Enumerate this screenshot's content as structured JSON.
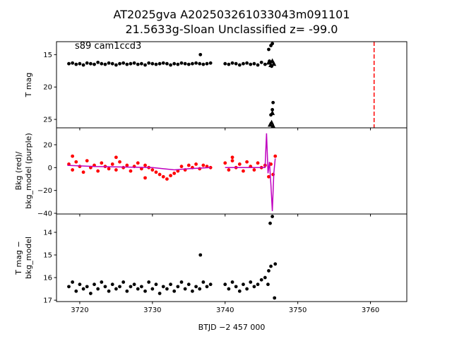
{
  "chart_data": [
    {
      "type": "scatter",
      "title": [
        "AT2025gva  A202503261033043m091101",
        "21.5633g-Sloan Unclassified z= -99.0"
      ],
      "annotation": "s89 cam1ccd3",
      "ylabel": [
        "T mag"
      ],
      "xlim": [
        3716.8,
        3765.0
      ],
      "ylim": [
        26.3,
        13.0
      ],
      "yticks": [
        15,
        20,
        25
      ],
      "xticks": [
        3720,
        3730,
        3740,
        3750,
        3760
      ],
      "vlines": [
        {
          "x": 3760.5,
          "color": "#ff0000",
          "style": "dashed"
        }
      ],
      "series": [
        {
          "marker": "circle",
          "color": "#000000",
          "x": [
            3718.5,
            3719,
            3719.5,
            3720,
            3720.5,
            3721,
            3721.5,
            3722,
            3722.5,
            3723,
            3723.5,
            3724,
            3724.5,
            3725,
            3725.5,
            3726,
            3726.5,
            3727,
            3727.5,
            3728,
            3728.5,
            3729,
            3729.5,
            3730,
            3730.5,
            3731,
            3731.5,
            3732,
            3732.5,
            3733,
            3733.5,
            3734,
            3734.5,
            3735,
            3735.5,
            3736,
            3736.5,
            3737,
            3737.5,
            3738,
            3740,
            3740.5,
            3741,
            3741.5,
            3742,
            3742.5,
            3743,
            3743.5,
            3744,
            3744.5,
            3745,
            3745.5,
            3736.6,
            3746.0,
            3746.3,
            3746.5,
            3746.1,
            3746.4,
            3746.6,
            3746.5,
            3746.3
          ],
          "values": [
            16.4,
            16.3,
            16.5,
            16.4,
            16.6,
            16.3,
            16.4,
            16.5,
            16.2,
            16.4,
            16.5,
            16.3,
            16.4,
            16.6,
            16.4,
            16.3,
            16.5,
            16.4,
            16.3,
            16.5,
            16.4,
            16.6,
            16.3,
            16.4,
            16.5,
            16.4,
            16.3,
            16.4,
            16.6,
            16.4,
            16.5,
            16.3,
            16.4,
            16.5,
            16.4,
            16.3,
            16.4,
            16.5,
            16.4,
            16.3,
            16.4,
            16.5,
            16.3,
            16.4,
            16.6,
            16.4,
            16.3,
            16.5,
            16.4,
            16.6,
            16.2,
            16.5,
            15.0,
            14.2,
            13.6,
            13.3,
            16.0,
            16.8,
            22.4,
            23.5,
            24.3
          ]
        },
        {
          "marker": "triangle",
          "color": "#000000",
          "x": [
            3746.0,
            3746.3,
            3746.5,
            3746.7,
            3746.4,
            3746.5,
            3746.6,
            3746.2
          ],
          "values": [
            16.2,
            16.6,
            16.0,
            16.4,
            25.5,
            24.0,
            26.0,
            25.8
          ]
        }
      ]
    },
    {
      "type": "scatter",
      "ylabel": [
        "Bkg (red)/",
        "bkg_model (purple)"
      ],
      "xlim": [
        3716.8,
        3765.0
      ],
      "ylim": [
        -40.6,
        34.8
      ],
      "yticks": [
        20,
        0,
        {
          "value": -20,
          "label": "−20"
        },
        {
          "value": -40,
          "label": "−40"
        }
      ],
      "xticks": [
        3720,
        3730,
        3740,
        3750,
        3760
      ],
      "series": [
        {
          "marker": "circle",
          "color": "#ff0000",
          "x": [
            3718.5,
            3719,
            3719.5,
            3720,
            3720.5,
            3721,
            3721.5,
            3722,
            3722.5,
            3723,
            3723.5,
            3724,
            3724.5,
            3725,
            3725.5,
            3726,
            3726.5,
            3727,
            3727.5,
            3728,
            3728.5,
            3729,
            3729.5,
            3730,
            3730.5,
            3731,
            3731.5,
            3732,
            3732.5,
            3733,
            3733.5,
            3734,
            3734.5,
            3735,
            3735.5,
            3736,
            3736.5,
            3737,
            3737.5,
            3738,
            3740,
            3740.5,
            3741,
            3741.5,
            3742,
            3742.5,
            3743,
            3743.5,
            3744,
            3744.5,
            3745,
            3745.5,
            3746.0,
            3746.3,
            3746.6,
            3746.9,
            3719.0,
            3725,
            3729,
            3741
          ],
          "values": [
            3,
            -2,
            5,
            1,
            -4,
            6,
            0,
            2,
            -3,
            4,
            1,
            -1,
            3,
            -2,
            5,
            0,
            2,
            -3,
            1,
            4,
            -1,
            2,
            0,
            -2,
            -4,
            -6,
            -8,
            -10,
            -7,
            -5,
            -3,
            1,
            -2,
            2,
            0,
            3,
            -1,
            2,
            1,
            0,
            4,
            -2,
            6,
            0,
            3,
            -3,
            5,
            1,
            -2,
            4,
            0,
            2,
            -8,
            3,
            -6,
            10,
            10,
            9,
            -9,
            9
          ]
        },
        {
          "mode": "line",
          "color": "#bf00bf",
          "x": [
            3718.3,
            3722,
            3726,
            3730,
            3733,
            3735,
            3738,
            3739,
            3740,
            3744,
            3745.5,
            3745.7,
            3745.9,
            3746.1,
            3746.3,
            3746.5,
            3746.7,
            3746.9
          ],
          "values": [
            2,
            1,
            0.5,
            0,
            -2,
            -1,
            0,
            null,
            0,
            0,
            0,
            30,
            -5,
            5,
            -15,
            -38,
            -5,
            8
          ]
        }
      ]
    },
    {
      "type": "scatter",
      "ylabel": [
        "T mag −",
        "bkg_model"
      ],
      "xlabel": "BTJD −2 457 000",
      "xlim": [
        3716.8,
        3765.0
      ],
      "ylim": [
        17.06,
        13.19
      ],
      "yticks": [
        14,
        15,
        16,
        17
      ],
      "xticks": [
        3720,
        3730,
        3740,
        3750,
        3760
      ],
      "xticklabels": true,
      "series": [
        {
          "marker": "circle",
          "color": "#000000",
          "x": [
            3718.5,
            3719,
            3719.5,
            3720,
            3720.5,
            3721,
            3721.5,
            3722,
            3722.5,
            3723,
            3723.5,
            3724,
            3724.5,
            3725,
            3725.5,
            3726,
            3726.5,
            3727,
            3727.5,
            3728,
            3728.5,
            3729,
            3729.5,
            3730,
            3730.5,
            3731,
            3731.5,
            3732,
            3732.5,
            3733,
            3733.5,
            3734,
            3734.5,
            3735,
            3735.5,
            3736,
            3736.5,
            3737,
            3737.5,
            3738,
            3740,
            3740.5,
            3741,
            3741.5,
            3742,
            3742.5,
            3743,
            3743.5,
            3744,
            3744.5,
            3745,
            3745.5,
            3736.6,
            3746.2,
            3746.5,
            3746.0,
            3746.3,
            3746.9,
            3746.8,
            3745.9
          ],
          "values": [
            16.4,
            16.2,
            16.6,
            16.3,
            16.5,
            16.4,
            16.7,
            16.3,
            16.5,
            16.2,
            16.4,
            16.6,
            16.3,
            16.5,
            16.4,
            16.2,
            16.6,
            16.4,
            16.3,
            16.5,
            16.4,
            16.6,
            16.2,
            16.5,
            16.3,
            16.7,
            16.4,
            16.5,
            16.3,
            16.6,
            16.4,
            16.2,
            16.5,
            16.3,
            16.6,
            16.4,
            16.5,
            16.2,
            16.4,
            16.3,
            16.3,
            16.5,
            16.2,
            16.4,
            16.6,
            16.3,
            16.5,
            16.2,
            16.4,
            16.3,
            16.1,
            16.0,
            15.0,
            13.6,
            13.3,
            15.7,
            15.5,
            15.4,
            16.9,
            16.3
          ]
        }
      ]
    }
  ]
}
